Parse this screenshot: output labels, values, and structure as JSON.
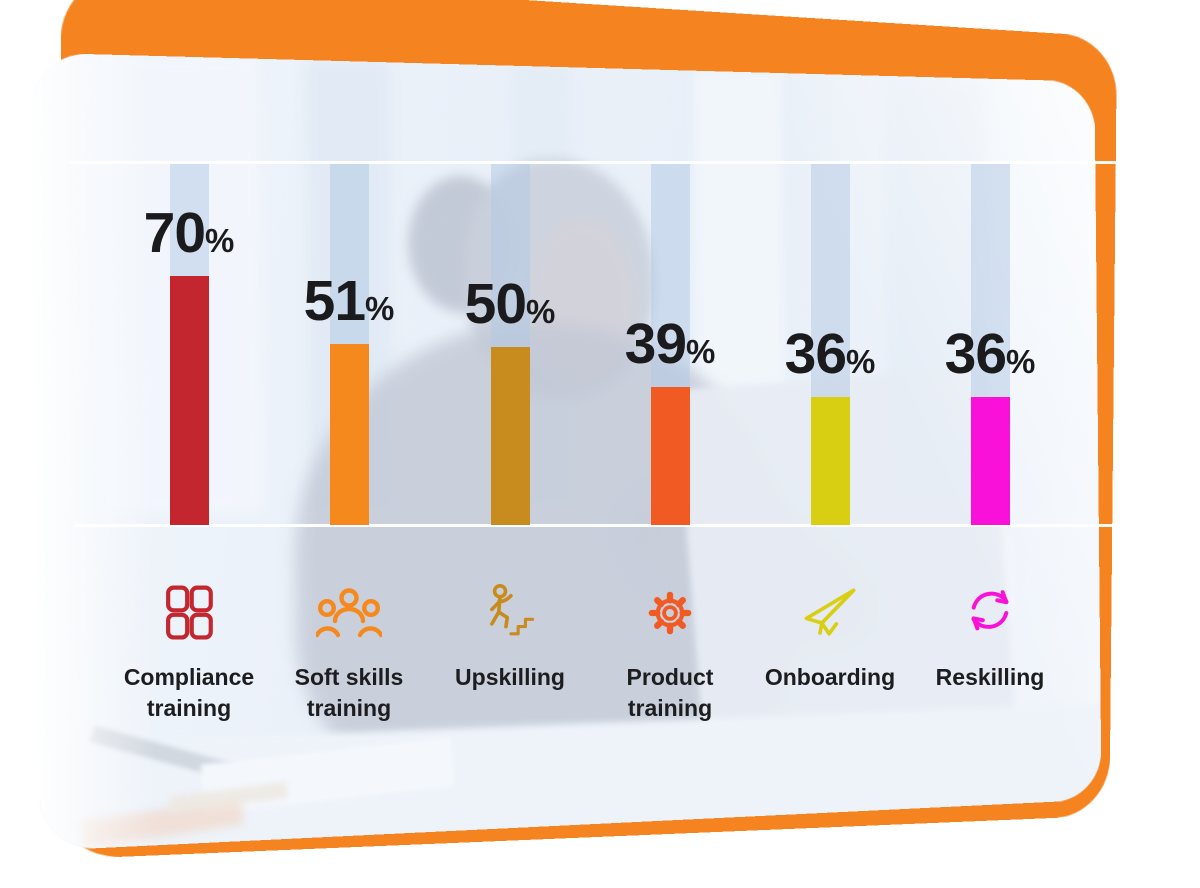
{
  "chart_data": {
    "type": "bar",
    "title": "",
    "categories": [
      "Compliance training",
      "Soft skills training",
      "Upskilling",
      "Product training",
      "Onboarding",
      "Reskilling"
    ],
    "values": [
      70,
      51,
      50,
      39,
      36,
      36
    ],
    "unit": "%",
    "value_labels": [
      "70%",
      "51%",
      "50%",
      "39%",
      "36%",
      "36%"
    ],
    "ylim": [
      0,
      100
    ],
    "legend_position": "none",
    "gridlines": "two horizontal white rules: chart top boundary and baseline",
    "columns": [
      {
        "label_lines": [
          "Compliance",
          "training"
        ],
        "value": 70,
        "color": "#c3262e",
        "icon": "grid-icon"
      },
      {
        "label_lines": [
          "Soft skills",
          "training"
        ],
        "value": 51,
        "color": "#f6891e",
        "icon": "people-group-icon"
      },
      {
        "label_lines": [
          "Upskilling"
        ],
        "value": 50,
        "color": "#c78b1e",
        "icon": "climb-stairs-icon"
      },
      {
        "label_lines": [
          "Product",
          "training"
        ],
        "value": 39,
        "color": "#f15a22",
        "icon": "gear-icon"
      },
      {
        "label_lines": [
          "Onboarding"
        ],
        "value": 36,
        "color": "#d8ce12",
        "icon": "paper-plane-icon"
      },
      {
        "label_lines": [
          "Reskilling"
        ],
        "value": 36,
        "color": "#f911d9",
        "icon": "cycle-arrows-icon"
      }
    ]
  },
  "styles": {
    "backdrop_orange": "#f5831f",
    "text_color": "#1b1b1d",
    "rule_color": "#ffffff",
    "track_color": "rgba(178,199,227,0.5)"
  }
}
